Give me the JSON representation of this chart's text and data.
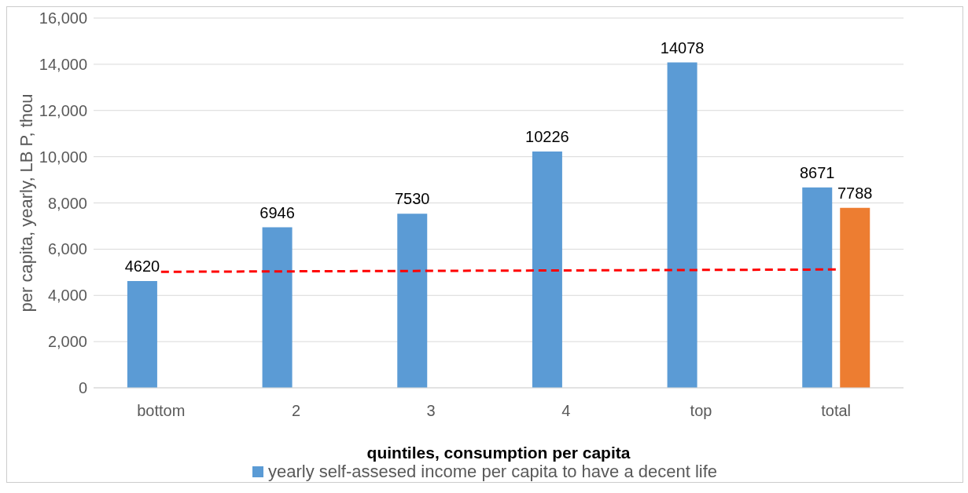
{
  "chart_data": {
    "type": "bar",
    "xlabel": "quintiles, consumption per capita",
    "ylabel": "per capita, yearly, LB P, thou",
    "categories": [
      "bottom",
      "2",
      "3",
      "4",
      "top",
      "total"
    ],
    "series": [
      {
        "name": "yearly self-assesed income per capita to have a decent life",
        "color": "#5b9bd5",
        "values": [
          4620,
          6946,
          7530,
          10226,
          14078,
          8671
        ],
        "value_labels": [
          "4620",
          "6946",
          "7530",
          "10226",
          "14078",
          "8671"
        ]
      },
      {
        "color": "#ed7d31",
        "values": [
          null,
          null,
          null,
          null,
          null,
          7788
        ],
        "value_labels": [
          null,
          null,
          null,
          null,
          null,
          "7788"
        ]
      },
      {
        "type": "line",
        "color": "#ff0000",
        "line_style": "dashed",
        "marker": "none",
        "values": [
          5020,
          5040,
          5060,
          5080,
          5100,
          5120
        ]
      }
    ],
    "ylim": [
      0,
      16000
    ],
    "yticks": [
      {
        "value": 0,
        "label": "0"
      },
      {
        "value": 2000,
        "label": "2,000"
      },
      {
        "value": 4000,
        "label": "4,000"
      },
      {
        "value": 6000,
        "label": "6,000"
      },
      {
        "value": 8000,
        "label": "8,000"
      },
      {
        "value": 10000,
        "label": "10,000"
      },
      {
        "value": 12000,
        "label": "12,000"
      },
      {
        "value": 14000,
        "label": "14,000"
      },
      {
        "value": 16000,
        "label": "16,000"
      }
    ],
    "grid": "y",
    "legend": "bottom"
  }
}
